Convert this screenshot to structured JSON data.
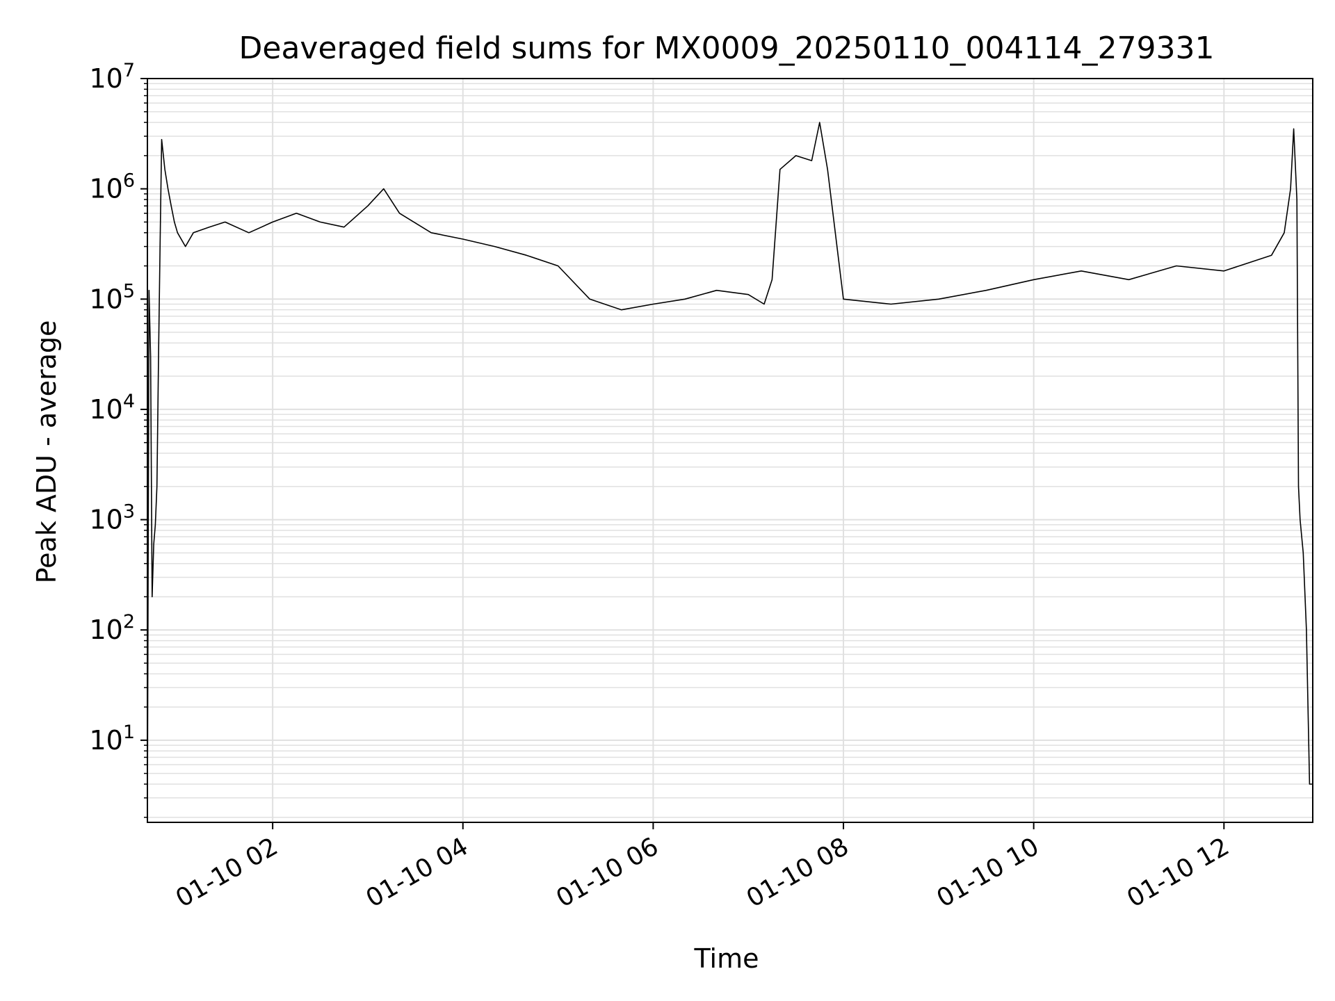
{
  "chart_data": {
    "type": "line",
    "title": "Deaveraged field sums for MX0009_20250110_004114_279331",
    "xlabel": "Time",
    "ylabel": "Peak ADU - average",
    "yscale": "log",
    "ylim": [
      1.8,
      10000000
    ],
    "xlim": [
      "2025-01-10T00:41:00",
      "2025-01-10T12:56:00"
    ],
    "x_ticks": [
      {
        "value": "2025-01-10T02:00:00",
        "label": "01-10 02"
      },
      {
        "value": "2025-01-10T04:00:00",
        "label": "01-10 04"
      },
      {
        "value": "2025-01-10T06:00:00",
        "label": "01-10 06"
      },
      {
        "value": "2025-01-10T08:00:00",
        "label": "01-10 08"
      },
      {
        "value": "2025-01-10T10:00:00",
        "label": "01-10 10"
      },
      {
        "value": "2025-01-10T12:00:00",
        "label": "01-10 12"
      }
    ],
    "y_ticks": [
      {
        "value": 10,
        "base": "10",
        "exp": "1"
      },
      {
        "value": 100,
        "base": "10",
        "exp": "2"
      },
      {
        "value": 1000,
        "base": "10",
        "exp": "3"
      },
      {
        "value": 10000,
        "base": "10",
        "exp": "4"
      },
      {
        "value": 100000,
        "base": "10",
        "exp": "5"
      },
      {
        "value": 1000000,
        "base": "10",
        "exp": "6"
      },
      {
        "value": 10000000,
        "base": "10",
        "exp": "7"
      }
    ],
    "grid": true,
    "line_color": "#000000",
    "grid_color": "#e0e0e0",
    "series": [
      {
        "x": [
          "2025-01-10T00:41:00",
          "2025-01-10T00:42:00",
          "2025-01-10T00:43:00",
          "2025-01-10T00:44:00",
          "2025-01-10T00:45:00",
          "2025-01-10T00:46:00",
          "2025-01-10T00:47:00",
          "2025-01-10T00:48:00",
          "2025-01-10T00:49:00",
          "2025-01-10T00:50:00",
          "2025-01-10T00:52:00",
          "2025-01-10T00:54:00",
          "2025-01-10T00:56:00",
          "2025-01-10T00:58:00",
          "2025-01-10T01:00:00",
          "2025-01-10T01:05:00",
          "2025-01-10T01:10:00",
          "2025-01-10T01:20:00",
          "2025-01-10T01:30:00",
          "2025-01-10T01:45:00",
          "2025-01-10T02:00:00",
          "2025-01-10T02:15:00",
          "2025-01-10T02:30:00",
          "2025-01-10T02:45:00",
          "2025-01-10T03:00:00",
          "2025-01-10T03:10:00",
          "2025-01-10T03:20:00",
          "2025-01-10T03:40:00",
          "2025-01-10T04:00:00",
          "2025-01-10T04:20:00",
          "2025-01-10T04:40:00",
          "2025-01-10T05:00:00",
          "2025-01-10T05:20:00",
          "2025-01-10T05:40:00",
          "2025-01-10T06:00:00",
          "2025-01-10T06:20:00",
          "2025-01-10T06:40:00",
          "2025-01-10T07:00:00",
          "2025-01-10T07:10:00",
          "2025-01-10T07:15:00",
          "2025-01-10T07:20:00",
          "2025-01-10T07:30:00",
          "2025-01-10T07:40:00",
          "2025-01-10T07:45:00",
          "2025-01-10T07:50:00",
          "2025-01-10T08:00:00",
          "2025-01-10T08:30:00",
          "2025-01-10T09:00:00",
          "2025-01-10T09:30:00",
          "2025-01-10T10:00:00",
          "2025-01-10T10:30:00",
          "2025-01-10T11:00:00",
          "2025-01-10T11:30:00",
          "2025-01-10T12:00:00",
          "2025-01-10T12:30:00",
          "2025-01-10T12:38:00",
          "2025-01-10T12:42:00",
          "2025-01-10T12:44:00",
          "2025-01-10T12:46:00",
          "2025-01-10T12:47:00",
          "2025-01-10T12:48:00",
          "2025-01-10T12:50:00",
          "2025-01-10T12:52:00",
          "2025-01-10T12:54:00",
          "2025-01-10T12:56:00"
        ],
        "y": [
          2,
          120000,
          30000,
          200,
          600,
          900,
          2000,
          30000,
          300000,
          2800000,
          1500000,
          1000000,
          700000,
          500000,
          400000,
          300000,
          400000,
          450000,
          500000,
          400000,
          500000,
          600000,
          500000,
          450000,
          700000,
          1000000,
          600000,
          400000,
          350000,
          300000,
          250000,
          200000,
          100000,
          80000,
          90000,
          100000,
          120000,
          110000,
          90000,
          150000,
          1500000,
          2000000,
          1800000,
          4000000,
          1500000,
          100000,
          90000,
          100000,
          120000,
          150000,
          180000,
          150000,
          200000,
          180000,
          250000,
          400000,
          1000000,
          3500000,
          800000,
          2000,
          1000,
          500,
          100,
          4,
          4
        ]
      }
    ]
  }
}
